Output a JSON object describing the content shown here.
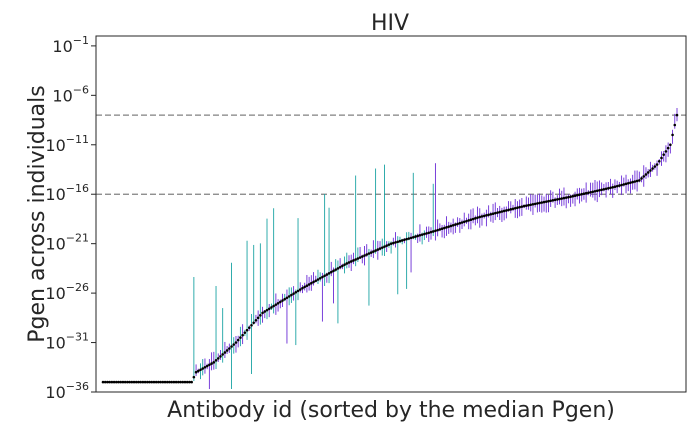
{
  "chart_data": {
    "type": "scatter",
    "title": "HIV",
    "xlabel": "Antibody id (sorted by the median Pgen)",
    "ylabel": "Pgen across individuals",
    "yscale": "log",
    "ylim_exp": [
      -36,
      0
    ],
    "y_ticks": [
      {
        "base": "10",
        "exp": "−36",
        "value_exp": -36
      },
      {
        "base": "10",
        "exp": "−31",
        "value_exp": -31
      },
      {
        "base": "10",
        "exp": "−26",
        "value_exp": -26
      },
      {
        "base": "10",
        "exp": "−21",
        "value_exp": -21
      },
      {
        "base": "10",
        "exp": "−16",
        "value_exp": -16
      },
      {
        "base": "10",
        "exp": "−11",
        "value_exp": -11
      },
      {
        "base": "10",
        "exp": "−6",
        "value_exp": -6
      },
      {
        "base": "10",
        "exp": "−1",
        "value_exp": -1
      }
    ],
    "reference_lines_exp": [
      -8,
      -16
    ],
    "n_antibodies": 260,
    "median_profile_exp": [
      {
        "x": 0,
        "y": -35
      },
      {
        "x": 40,
        "y": -35
      },
      {
        "x": 42,
        "y": -34
      },
      {
        "x": 50,
        "y": -33
      },
      {
        "x": 60,
        "y": -31
      },
      {
        "x": 72,
        "y": -28
      },
      {
        "x": 90,
        "y": -25.5
      },
      {
        "x": 110,
        "y": -23
      },
      {
        "x": 130,
        "y": -21
      },
      {
        "x": 150,
        "y": -19.7
      },
      {
        "x": 170,
        "y": -18.3
      },
      {
        "x": 190,
        "y": -17.2
      },
      {
        "x": 210,
        "y": -16.3
      },
      {
        "x": 230,
        "y": -15.3
      },
      {
        "x": 242,
        "y": -14.6
      },
      {
        "x": 250,
        "y": -13
      },
      {
        "x": 256,
        "y": -11
      },
      {
        "x": 259,
        "y": -8
      }
    ],
    "colors": {
      "median_point": "#000000",
      "range_primary": "#6a2bd6",
      "range_secondary": "#1aa3a3",
      "reference_line": "#808080",
      "axes": "#262626"
    },
    "grid": false,
    "legend": "none"
  }
}
